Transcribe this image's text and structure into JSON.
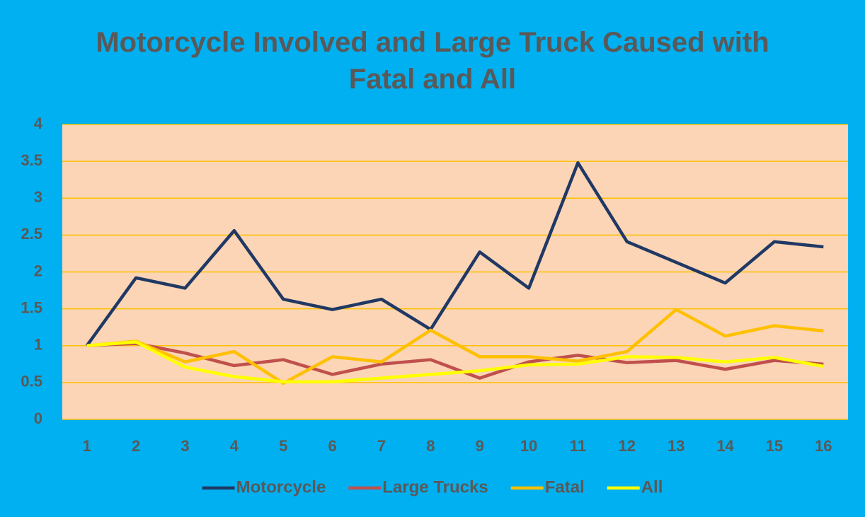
{
  "chart_data": {
    "type": "line",
    "title": "Motorcycle Involved and Large Truck Caused with Fatal and All",
    "categories": [
      "1",
      "2",
      "3",
      "4",
      "5",
      "6",
      "7",
      "8",
      "9",
      "10",
      "11",
      "12",
      "13",
      "14",
      "15",
      "16"
    ],
    "series": [
      {
        "name": "Motorcycle",
        "color": "#203864",
        "values": [
          1,
          1.92,
          1.78,
          2.56,
          1.63,
          1.49,
          1.63,
          1.22,
          2.27,
          1.78,
          3.48,
          2.41,
          2.13,
          1.85,
          2.41,
          2.34
        ]
      },
      {
        "name": "Large Trucks",
        "color": "#c0504d",
        "values": [
          1,
          1.03,
          0.9,
          0.73,
          0.81,
          0.61,
          0.75,
          0.81,
          0.56,
          0.78,
          0.87,
          0.77,
          0.8,
          0.68,
          0.8,
          0.75
        ]
      },
      {
        "name": "Fatal",
        "color": "#ffc000",
        "values": [
          1,
          1.06,
          0.78,
          0.92,
          0.49,
          0.85,
          0.78,
          1.21,
          0.85,
          0.85,
          0.79,
          0.92,
          1.49,
          1.13,
          1.27,
          1.2
        ]
      },
      {
        "name": "All",
        "color": "#ffff00",
        "values": [
          1,
          1.05,
          0.71,
          0.58,
          0.51,
          0.51,
          0.56,
          0.61,
          0.66,
          0.74,
          0.75,
          0.85,
          0.84,
          0.78,
          0.84,
          0.72
        ]
      }
    ],
    "ylim": [
      0,
      4
    ],
    "yticks": [
      0,
      0.5,
      1,
      1.5,
      2,
      2.5,
      3,
      3.5,
      4
    ],
    "grid": true,
    "legend": "bottom"
  }
}
